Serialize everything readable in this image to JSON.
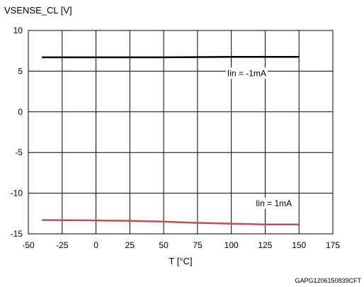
{
  "chart_data": {
    "type": "line",
    "ylabel": "VSENSE_CL [V]",
    "xlabel": "T [°C]",
    "xlim": [
      -50,
      175
    ],
    "ylim": [
      -15,
      10
    ],
    "xticks": [
      -50,
      -25,
      0,
      25,
      50,
      75,
      100,
      125,
      150,
      175
    ],
    "yticks": [
      -15,
      -10,
      -5,
      0,
      5,
      10
    ],
    "grid": true,
    "series": [
      {
        "name": "Iin = -1mA",
        "color": "#000000",
        "x": [
          -40,
          0,
          50,
          100,
          150
        ],
        "y": [
          6.7,
          6.7,
          6.7,
          6.75,
          6.75
        ]
      },
      {
        "name": "Iin = 1mA",
        "color": "#c0504d",
        "x": [
          -40,
          0,
          25,
          50,
          75,
          100,
          125,
          150
        ],
        "y": [
          -13.3,
          -13.35,
          -13.4,
          -13.5,
          -13.65,
          -13.75,
          -13.85,
          -13.85
        ]
      }
    ],
    "annotations": [
      {
        "text": "Iin = -1mA",
        "x": 97,
        "y": 4.4
      },
      {
        "text": "Iin = 1mA",
        "x": 118,
        "y": -11.6
      }
    ],
    "footer_code": "GAPG1206150839CFT"
  }
}
